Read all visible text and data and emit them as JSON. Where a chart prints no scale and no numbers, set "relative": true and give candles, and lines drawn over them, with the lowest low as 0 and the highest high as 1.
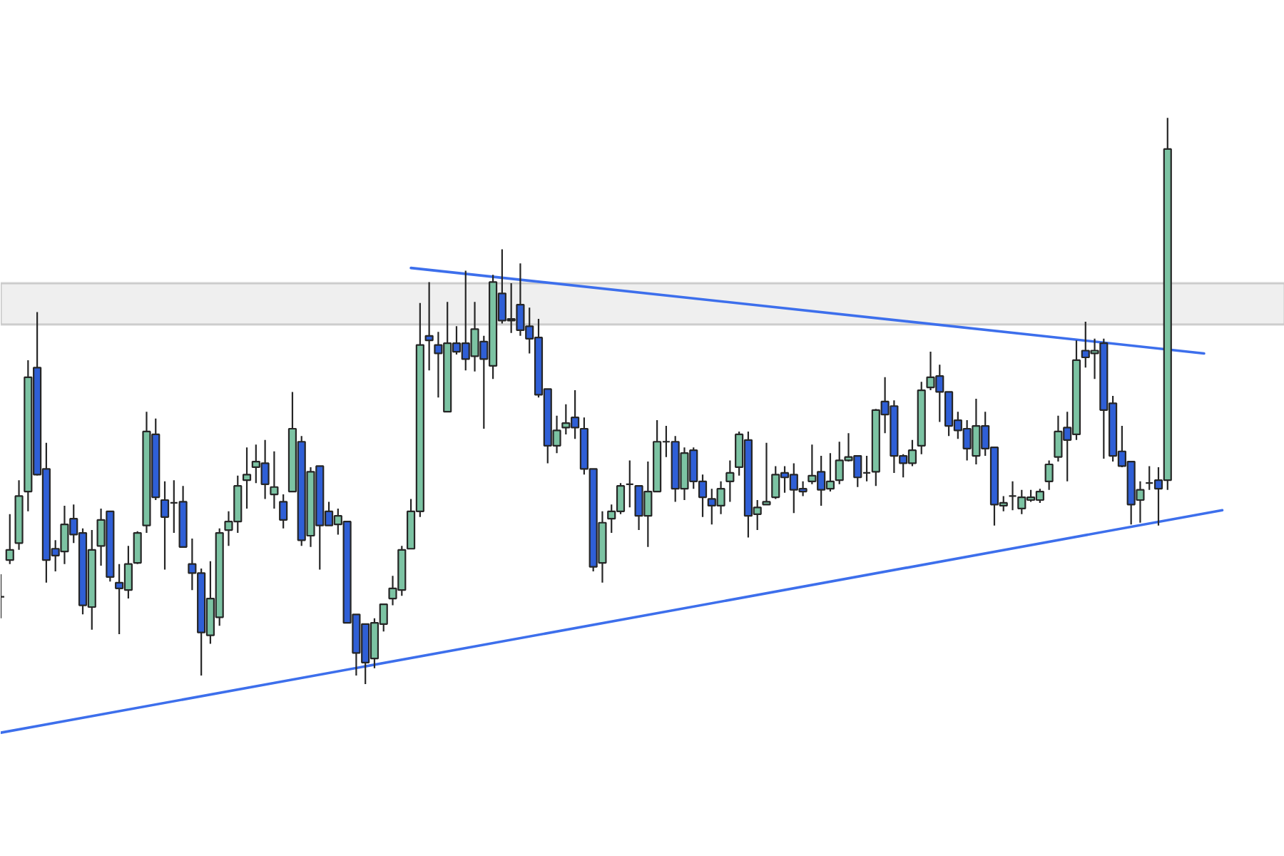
{
  "chart_data": {
    "type": "candlestick",
    "relative": true,
    "categories": [
      null,
      null,
      null,
      null,
      null,
      null,
      null,
      null,
      null,
      null,
      null,
      null,
      null,
      null,
      null,
      null,
      null,
      null,
      null,
      null,
      null,
      null,
      null,
      null,
      null,
      null,
      null,
      null,
      null,
      null,
      null,
      null,
      null,
      null,
      null,
      null,
      null,
      null,
      null,
      null,
      null,
      null,
      null,
      null,
      null,
      null,
      null,
      null,
      null,
      null,
      null,
      null,
      null,
      null,
      null,
      null,
      null,
      null,
      null,
      null,
      null,
      null,
      null,
      null,
      null,
      null,
      null,
      null,
      null,
      null,
      null,
      null,
      null,
      null,
      null,
      null,
      null,
      null,
      null,
      null,
      null,
      null,
      null,
      null,
      null,
      null,
      null,
      null,
      null,
      null,
      null,
      null,
      null,
      null,
      null,
      null,
      null,
      null,
      null,
      null,
      null,
      null,
      null,
      null,
      null,
      null,
      null,
      null,
      null,
      null,
      null,
      null,
      null,
      null,
      null,
      null,
      null,
      null,
      null,
      null,
      null,
      null,
      null,
      null,
      null,
      null,
      null,
      null,
      null,
      null,
      null,
      null,
      null,
      null,
      null
    ],
    "ohlc": [
      [
        0.154,
        0.194,
        0.116,
        0.154
      ],
      [
        0.219,
        0.3,
        0.212,
        0.237
      ],
      [
        0.249,
        0.36,
        0.237,
        0.332
      ],
      [
        0.34,
        0.572,
        0.305,
        0.542
      ],
      [
        0.559,
        0.657,
        0.368,
        0.37
      ],
      [
        0.38,
        0.426,
        0.179,
        0.219
      ],
      [
        0.239,
        0.254,
        0.199,
        0.227
      ],
      [
        0.234,
        0.315,
        0.212,
        0.282
      ],
      [
        0.292,
        0.317,
        0.249,
        0.264
      ],
      [
        0.267,
        0.275,
        0.123,
        0.139
      ],
      [
        0.136,
        0.272,
        0.096,
        0.237
      ],
      [
        0.244,
        0.31,
        0.209,
        0.29
      ],
      [
        0.305,
        0.305,
        0.181,
        0.189
      ],
      [
        0.179,
        0.212,
        0.088,
        0.169
      ],
      [
        0.166,
        0.244,
        0.151,
        0.212
      ],
      [
        0.214,
        0.27,
        0.212,
        0.267
      ],
      [
        0.28,
        0.481,
        0.267,
        0.446
      ],
      [
        0.441,
        0.469,
        0.325,
        0.33
      ],
      [
        0.325,
        0.358,
        0.202,
        0.295
      ],
      [
        0.32,
        0.36,
        0.267,
        0.32
      ],
      [
        0.322,
        0.35,
        0.242,
        0.242
      ],
      [
        0.212,
        0.257,
        0.166,
        0.196
      ],
      [
        0.196,
        0.204,
        0.015,
        0.091
      ],
      [
        0.086,
        0.217,
        0.071,
        0.151
      ],
      [
        0.118,
        0.275,
        0.103,
        0.267
      ],
      [
        0.272,
        0.305,
        0.244,
        0.287
      ],
      [
        0.287,
        0.368,
        0.267,
        0.35
      ],
      [
        0.36,
        0.418,
        0.31,
        0.37
      ],
      [
        0.383,
        0.423,
        0.355,
        0.393
      ],
      [
        0.39,
        0.431,
        0.327,
        0.353
      ],
      [
        0.335,
        0.411,
        0.31,
        0.348
      ],
      [
        0.322,
        0.335,
        0.275,
        0.29
      ],
      [
        0.34,
        0.516,
        0.34,
        0.451
      ],
      [
        0.428,
        0.438,
        0.244,
        0.254
      ],
      [
        0.262,
        0.383,
        0.242,
        0.375
      ],
      [
        0.385,
        0.385,
        0.202,
        0.28
      ],
      [
        0.305,
        0.322,
        0.28,
        0.28
      ],
      [
        0.282,
        0.31,
        0.264,
        0.297
      ],
      [
        0.287,
        0.287,
        0.108,
        0.108
      ],
      [
        0.123,
        0.123,
        0.015,
        0.055
      ],
      [
        0.106,
        0.106,
        0,
        0.038
      ],
      [
        0.045,
        0.116,
        0.028,
        0.108
      ],
      [
        0.106,
        0.141,
        0.093,
        0.141
      ],
      [
        0.151,
        0.191,
        0.139,
        0.169
      ],
      [
        0.166,
        0.244,
        0.156,
        0.237
      ],
      [
        0.239,
        0.327,
        0.239,
        0.305
      ],
      [
        0.305,
        0.673,
        0.295,
        0.599
      ],
      [
        0.615,
        0.71,
        0.554,
        0.607
      ],
      [
        0.599,
        0.622,
        0.506,
        0.584
      ],
      [
        0.481,
        0.675,
        0.481,
        0.602
      ],
      [
        0.602,
        0.632,
        0.582,
        0.587
      ],
      [
        0.602,
        0.73,
        0.554,
        0.574
      ],
      [
        0.579,
        0.675,
        0.552,
        0.627
      ],
      [
        0.605,
        0.615,
        0.451,
        0.574
      ],
      [
        0.562,
        0.723,
        0.539,
        0.71
      ],
      [
        0.69,
        0.768,
        0.637,
        0.642
      ],
      [
        0.642,
        0.708,
        0.62,
        0.645
      ],
      [
        0.67,
        0.743,
        0.615,
        0.625
      ],
      [
        0.632,
        0.665,
        0.584,
        0.61
      ],
      [
        0.612,
        0.645,
        0.506,
        0.511
      ],
      [
        0.521,
        0.521,
        0.39,
        0.421
      ],
      [
        0.421,
        0.474,
        0.408,
        0.448
      ],
      [
        0.453,
        0.494,
        0.441,
        0.461
      ],
      [
        0.471,
        0.519,
        0.433,
        0.453
      ],
      [
        0.451,
        0.471,
        0.37,
        0.38
      ],
      [
        0.38,
        0.38,
        0.199,
        0.207
      ],
      [
        0.214,
        0.305,
        0.179,
        0.285
      ],
      [
        0.292,
        0.317,
        0.267,
        0.305
      ],
      [
        0.305,
        0.355,
        0.3,
        0.35
      ],
      [
        0.353,
        0.395,
        0.312,
        0.353
      ],
      [
        0.35,
        0.35,
        0.272,
        0.297
      ],
      [
        0.297,
        0.393,
        0.242,
        0.34
      ],
      [
        0.34,
        0.466,
        0.34,
        0.428
      ],
      [
        0.428,
        0.456,
        0.401,
        0.428
      ],
      [
        0.428,
        0.438,
        0.322,
        0.345
      ],
      [
        0.345,
        0.418,
        0.325,
        0.408
      ],
      [
        0.413,
        0.418,
        0.345,
        0.358
      ],
      [
        0.358,
        0.37,
        0.295,
        0.33
      ],
      [
        0.327,
        0.345,
        0.282,
        0.315
      ],
      [
        0.315,
        0.358,
        0.3,
        0.345
      ],
      [
        0.358,
        0.395,
        0.322,
        0.373
      ],
      [
        0.383,
        0.446,
        0.368,
        0.441
      ],
      [
        0.431,
        0.446,
        0.259,
        0.297
      ],
      [
        0.3,
        0.325,
        0.272,
        0.312
      ],
      [
        0.317,
        0.426,
        0.317,
        0.322
      ],
      [
        0.33,
        0.385,
        0.327,
        0.37
      ],
      [
        0.373,
        0.385,
        0.338,
        0.365
      ],
      [
        0.37,
        0.39,
        0.302,
        0.343
      ],
      [
        0.345,
        0.358,
        0.332,
        0.34
      ],
      [
        0.358,
        0.423,
        0.353,
        0.368
      ],
      [
        0.375,
        0.403,
        0.315,
        0.343
      ],
      [
        0.345,
        0.408,
        0.34,
        0.358
      ],
      [
        0.36,
        0.428,
        0.353,
        0.395
      ],
      [
        0.395,
        0.443,
        0.393,
        0.401
      ],
      [
        0.403,
        0.403,
        0.348,
        0.365
      ],
      [
        0.373,
        0.403,
        0.358,
        0.373
      ],
      [
        0.375,
        0.486,
        0.35,
        0.484
      ],
      [
        0.499,
        0.542,
        0.443,
        0.476
      ],
      [
        0.491,
        0.501,
        0.373,
        0.403
      ],
      [
        0.403,
        0.406,
        0.365,
        0.39
      ],
      [
        0.39,
        0.431,
        0.385,
        0.413
      ],
      [
        0.421,
        0.534,
        0.406,
        0.519
      ],
      [
        0.524,
        0.587,
        0.519,
        0.542
      ],
      [
        0.544,
        0.564,
        0.463,
        0.516
      ],
      [
        0.516,
        0.516,
        0.438,
        0.456
      ],
      [
        0.466,
        0.481,
        0.433,
        0.448
      ],
      [
        0.451,
        0.466,
        0.395,
        0.416
      ],
      [
        0.403,
        0.504,
        0.388,
        0.456
      ],
      [
        0.456,
        0.481,
        0.403,
        0.416
      ],
      [
        0.418,
        0.418,
        0.28,
        0.317
      ],
      [
        0.315,
        0.332,
        0.305,
        0.32
      ],
      [
        0.332,
        0.358,
        0.307,
        0.332
      ],
      [
        0.31,
        0.343,
        0.3,
        0.33
      ],
      [
        0.325,
        0.343,
        0.322,
        0.33
      ],
      [
        0.325,
        0.345,
        0.32,
        0.34
      ],
      [
        0.358,
        0.395,
        0.343,
        0.388
      ],
      [
        0.401,
        0.474,
        0.393,
        0.446
      ],
      [
        0.453,
        0.481,
        0.358,
        0.431
      ],
      [
        0.441,
        0.607,
        0.431,
        0.572
      ],
      [
        0.589,
        0.64,
        0.559,
        0.577
      ],
      [
        0.584,
        0.61,
        0.539,
        0.589
      ],
      [
        0.602,
        0.61,
        0.398,
        0.484
      ],
      [
        0.496,
        0.509,
        0.393,
        0.403
      ],
      [
        0.411,
        0.456,
        0.383,
        0.385
      ],
      [
        0.393,
        0.393,
        0.282,
        0.317
      ],
      [
        0.325,
        0.358,
        0.285,
        0.343
      ],
      [
        0.355,
        0.385,
        0.343,
        0.355
      ],
      [
        0.36,
        0.383,
        0.28,
        0.345
      ],
      [
        0.36,
        1,
        0.343,
        0.945
      ],
      null,
      null,
      null,
      null,
      null,
      null
    ],
    "colors": [
      "#262626",
      "#7cc3a3",
      "#7cc3a3",
      "#7cc3a3",
      "#2f5fd6",
      "#2f5fd6",
      "#2f5fd6",
      "#7cc3a3",
      "#2f5fd6",
      "#2f5fd6",
      "#7cc3a3",
      "#7cc3a3",
      "#2f5fd6",
      "#2f5fd6",
      "#7cc3a3",
      "#7cc3a3",
      "#7cc3a3",
      "#2f5fd6",
      "#2f5fd6",
      "#262626",
      "#2f5fd6",
      "#2f5fd6",
      "#2f5fd6",
      "#7cc3a3",
      "#7cc3a3",
      "#7cc3a3",
      "#7cc3a3",
      "#7cc3a3",
      "#7cc3a3",
      "#2f5fd6",
      "#7cc3a3",
      "#2f5fd6",
      "#7cc3a3",
      "#2f5fd6",
      "#7cc3a3",
      "#2f5fd6",
      "#2f5fd6",
      "#7cc3a3",
      "#2f5fd6",
      "#2f5fd6",
      "#2f5fd6",
      "#7cc3a3",
      "#7cc3a3",
      "#7cc3a3",
      "#7cc3a3",
      "#7cc3a3",
      "#7cc3a3",
      "#2f5fd6",
      "#2f5fd6",
      "#7cc3a3",
      "#2f5fd6",
      "#2f5fd6",
      "#7cc3a3",
      "#2f5fd6",
      "#7cc3a3",
      "#2f5fd6",
      "#7cc3a3",
      "#2f5fd6",
      "#2f5fd6",
      "#2f5fd6",
      "#2f5fd6",
      "#7cc3a3",
      "#7cc3a3",
      "#2f5fd6",
      "#2f5fd6",
      "#2f5fd6",
      "#7cc3a3",
      "#7cc3a3",
      "#7cc3a3",
      "#262626",
      "#2f5fd6",
      "#7cc3a3",
      "#7cc3a3",
      "#262626",
      "#2f5fd6",
      "#7cc3a3",
      "#2f5fd6",
      "#2f5fd6",
      "#2f5fd6",
      "#7cc3a3",
      "#7cc3a3",
      "#7cc3a3",
      "#2f5fd6",
      "#7cc3a3",
      "#7cc3a3",
      "#7cc3a3",
      "#2f5fd6",
      "#2f5fd6",
      "#2f5fd6",
      "#7cc3a3",
      "#2f5fd6",
      "#7cc3a3",
      "#7cc3a3",
      "#7cc3a3",
      "#2f5fd6",
      "#262626",
      "#7cc3a3",
      "#2f5fd6",
      "#2f5fd6",
      "#2f5fd6",
      "#7cc3a3",
      "#7cc3a3",
      "#7cc3a3",
      "#2f5fd6",
      "#2f5fd6",
      "#2f5fd6",
      "#2f5fd6",
      "#7cc3a3",
      "#2f5fd6",
      "#2f5fd6",
      "#7cc3a3",
      "#262626",
      "#7cc3a3",
      "#7cc3a3",
      "#7cc3a3",
      "#7cc3a3",
      "#7cc3a3",
      "#2f5fd6",
      "#7cc3a3",
      "#2f5fd6",
      "#7cc3a3",
      "#2f5fd6",
      "#2f5fd6",
      "#2f5fd6",
      "#2f5fd6",
      "#7cc3a3",
      "#262626",
      "#2f5fd6",
      "#7cc3a3",
      null,
      null,
      null,
      null,
      null,
      null
    ],
    "series": [
      {
        "type": "line",
        "color": "#3d6fec",
        "values": [
          null,
          null,
          null,
          null,
          null,
          null,
          null,
          null,
          null,
          null,
          null,
          null,
          null,
          null,
          null,
          null,
          null,
          null,
          null,
          null,
          null,
          null,
          null,
          null,
          null,
          null,
          null,
          null,
          null,
          null,
          null,
          null,
          null,
          null,
          null,
          null,
          null,
          null,
          null,
          null,
          null,
          null,
          null,
          null,
          null,
          0.735,
          null,
          null,
          null,
          null,
          null,
          null,
          null,
          null,
          null,
          null,
          null,
          null,
          null,
          null,
          null,
          null,
          null,
          null,
          null,
          null,
          null,
          null,
          null,
          null,
          null,
          null,
          null,
          null,
          null,
          null,
          null,
          null,
          null,
          null,
          null,
          null,
          null,
          null,
          null,
          null,
          null,
          null,
          null,
          null,
          null,
          null,
          null,
          null,
          null,
          null,
          null,
          null,
          null,
          null,
          null,
          null,
          null,
          null,
          null,
          null,
          null,
          null,
          null,
          null,
          null,
          null,
          null,
          null,
          null,
          null,
          null,
          null,
          null,
          null,
          null,
          null,
          null,
          null,
          null,
          null,
          null,
          null,
          null,
          null,
          null,
          null,
          0.584,
          null,
          null
        ]
      },
      {
        "type": "line",
        "color": "#3d6fec",
        "values": [
          -0.086,
          null,
          null,
          null,
          null,
          null,
          null,
          null,
          null,
          null,
          null,
          null,
          null,
          null,
          null,
          null,
          null,
          null,
          null,
          null,
          null,
          null,
          null,
          null,
          null,
          null,
          null,
          null,
          null,
          null,
          null,
          null,
          null,
          null,
          null,
          null,
          null,
          null,
          null,
          null,
          null,
          null,
          null,
          null,
          null,
          null,
          null,
          null,
          null,
          null,
          null,
          null,
          null,
          null,
          null,
          null,
          null,
          null,
          null,
          null,
          null,
          null,
          null,
          null,
          null,
          null,
          null,
          null,
          null,
          null,
          null,
          null,
          null,
          null,
          null,
          null,
          null,
          null,
          null,
          null,
          null,
          null,
          null,
          null,
          null,
          null,
          null,
          null,
          null,
          null,
          null,
          null,
          null,
          null,
          null,
          null,
          null,
          null,
          null,
          null,
          null,
          null,
          null,
          null,
          null,
          null,
          null,
          null,
          null,
          null,
          null,
          null,
          null,
          null,
          null,
          null,
          null,
          null,
          null,
          null,
          null,
          null,
          null,
          null,
          null,
          null,
          null,
          null,
          null,
          null,
          null,
          null,
          null,
          null,
          0.307
        ]
      }
    ],
    "bands": [
      {
        "axis": "y",
        "from": 0.635,
        "to": 0.708,
        "color": "#efefef"
      }
    ]
  }
}
